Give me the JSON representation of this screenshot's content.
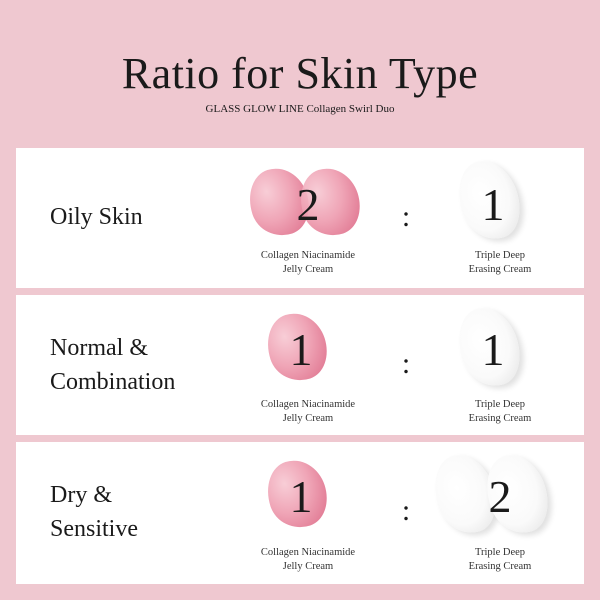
{
  "title": "Ratio for Skin Type",
  "subtitle": "GLASS GLOW LINE Collagen Swirl Duo",
  "colors": {
    "background": "#efc8d0",
    "panel": "#ffffff",
    "jelly": "#e0738e"
  },
  "rows": [
    {
      "skin": [
        "Oily Skin"
      ],
      "jelly_ratio": "2",
      "cream_ratio": "1",
      "separator": ":",
      "jelly_label": [
        "Collagen Niacinamide",
        "Jelly Cream"
      ],
      "cream_label": [
        "Triple Deep",
        "Erasing Cream"
      ]
    },
    {
      "skin": [
        "Normal &",
        "Combination"
      ],
      "jelly_ratio": "1",
      "cream_ratio": "1",
      "separator": ":",
      "jelly_label": [
        "Collagen Niacinamide",
        "Jelly Cream"
      ],
      "cream_label": [
        "Triple Deep",
        "Erasing Cream"
      ]
    },
    {
      "skin": [
        "Dry &",
        "Sensitive"
      ],
      "jelly_ratio": "1",
      "cream_ratio": "2",
      "separator": ":",
      "jelly_label": [
        "Collagen Niacinamide",
        "Jelly Cream"
      ],
      "cream_label": [
        "Triple Deep",
        "Erasing Cream"
      ]
    }
  ]
}
